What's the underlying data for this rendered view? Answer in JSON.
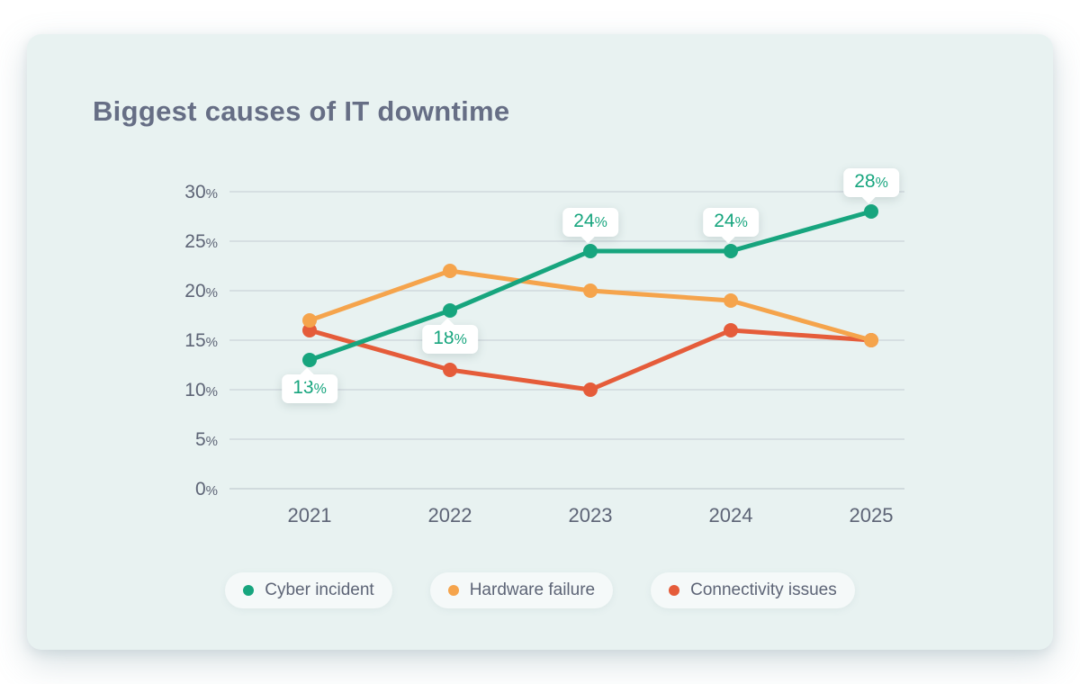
{
  "page": {
    "background_color": "#ffffff",
    "card_color": "#e8f2f1"
  },
  "colors": {
    "title_text": "#666e85",
    "axis_text": "#5d6476",
    "gridline": "#ccd4da",
    "baseline": "#c2cbd1",
    "tooltip_bg": "#ffffff"
  },
  "chart_data": {
    "type": "line",
    "title": "Biggest causes of IT downtime",
    "categories": [
      "2021",
      "2022",
      "2023",
      "2024",
      "2025"
    ],
    "y_ticks": [
      "0%",
      "5%",
      "10%",
      "15%",
      "20%",
      "25%",
      "30%"
    ],
    "ylim": [
      0,
      30
    ],
    "grid": true,
    "legend_position": "bottom",
    "series": [
      {
        "name": "Cyber incident",
        "color": "#17a57e",
        "values": [
          13,
          18,
          24,
          24,
          28
        ]
      },
      {
        "name": "Hardware failure",
        "color": "#f5a44c",
        "values": [
          17,
          22,
          20,
          19,
          15
        ]
      },
      {
        "name": "Connectivity issues",
        "color": "#e55c3a",
        "values": [
          16,
          12,
          10,
          16,
          15
        ]
      }
    ],
    "point_labels": [
      {
        "series": "Cyber incident",
        "x": "2021",
        "text": "13%",
        "placement": "below"
      },
      {
        "series": "Cyber incident",
        "x": "2022",
        "text": "18%",
        "placement": "below"
      },
      {
        "series": "Cyber incident",
        "x": "2023",
        "text": "24%",
        "placement": "above"
      },
      {
        "series": "Cyber incident",
        "x": "2024",
        "text": "24%",
        "placement": "above"
      },
      {
        "series": "Cyber incident",
        "x": "2025",
        "text": "28%",
        "placement": "above"
      }
    ]
  }
}
